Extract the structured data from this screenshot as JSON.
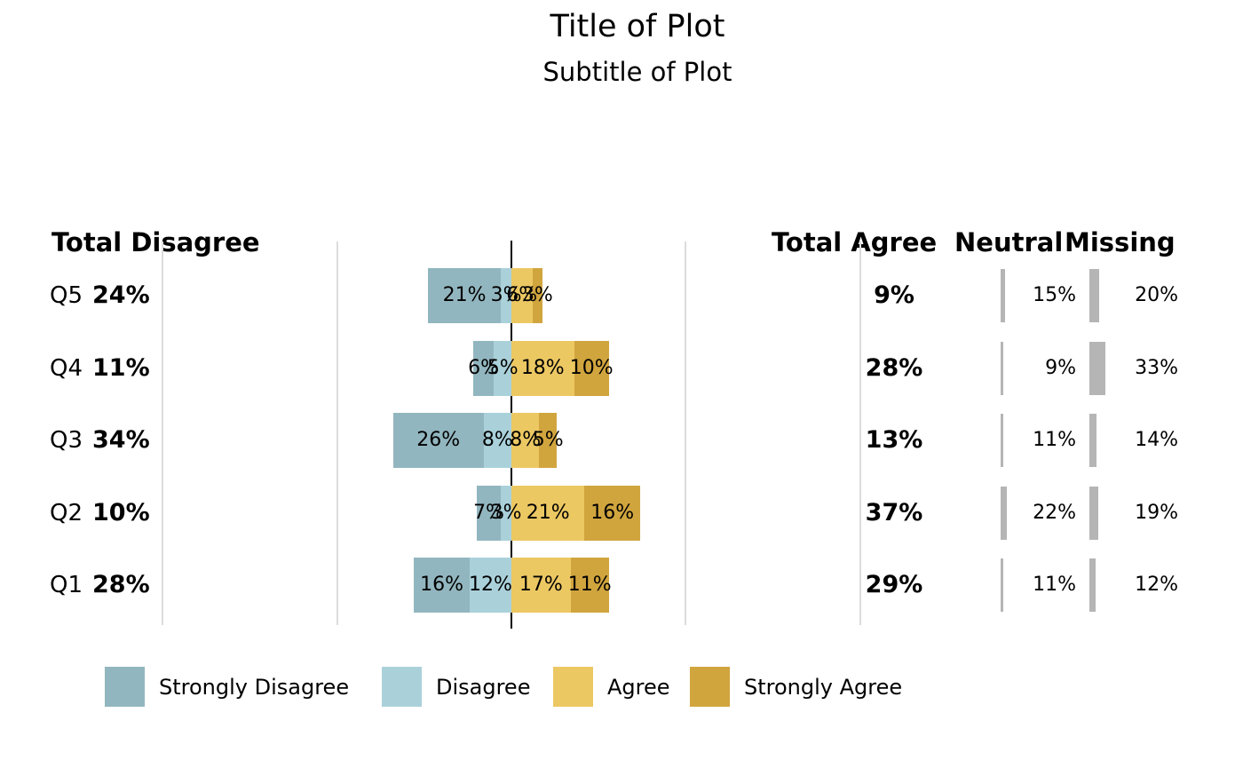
{
  "title": "Title of Plot",
  "subtitle": "Subtitle of Plot",
  "headers": {
    "total_disagree": "Total Disagree",
    "total_agree": "Total Agree",
    "neutral": "Neutral",
    "missing": "Missing"
  },
  "legend": [
    {
      "label": "Strongly Disagree",
      "color": "#92b6bf"
    },
    {
      "label": "Disagree",
      "color": "#aad1da"
    },
    {
      "label": "Agree",
      "color": "#ecc863"
    },
    {
      "label": "Strongly Agree",
      "color": "#d1a53e"
    }
  ],
  "colors": {
    "strongly_disagree": "#92b6bf",
    "disagree": "#aad1da",
    "agree": "#ecc863",
    "strongly_agree": "#d1a53e",
    "neutral_missing_bar": "#b5b5b5",
    "gridline": "#dcdcdc",
    "zero_line": "#000000"
  },
  "chart_data": {
    "type": "bar",
    "subtype": "diverging-stacked-likert",
    "title": "Title of Plot",
    "subtitle": "Subtitle of Plot",
    "categories": [
      "Q5",
      "Q4",
      "Q3",
      "Q2",
      "Q1"
    ],
    "series": [
      {
        "name": "Strongly Disagree",
        "values": [
          21,
          6,
          26,
          7,
          16
        ]
      },
      {
        "name": "Disagree",
        "values": [
          3,
          5,
          8,
          3,
          12
        ]
      },
      {
        "name": "Agree",
        "values": [
          6,
          18,
          8,
          21,
          17
        ]
      },
      {
        "name": "Strongly Agree",
        "values": [
          3,
          10,
          5,
          16,
          11
        ]
      }
    ],
    "totals": {
      "total_disagree": [
        24,
        11,
        34,
        10,
        28
      ],
      "total_agree": [
        9,
        28,
        13,
        37,
        29
      ],
      "neutral": [
        15,
        9,
        11,
        22,
        11
      ],
      "missing": [
        20,
        33,
        14,
        19,
        12
      ]
    },
    "unit": "%",
    "xlabel": "",
    "ylabel": "",
    "axis": {
      "xlim_pct": [
        -100,
        100
      ],
      "gridlines_pct": [
        -100,
        -50,
        50,
        100
      ],
      "zero_line_pct": 0
    },
    "grid": "vertical-light",
    "legend_position": "bottom"
  }
}
